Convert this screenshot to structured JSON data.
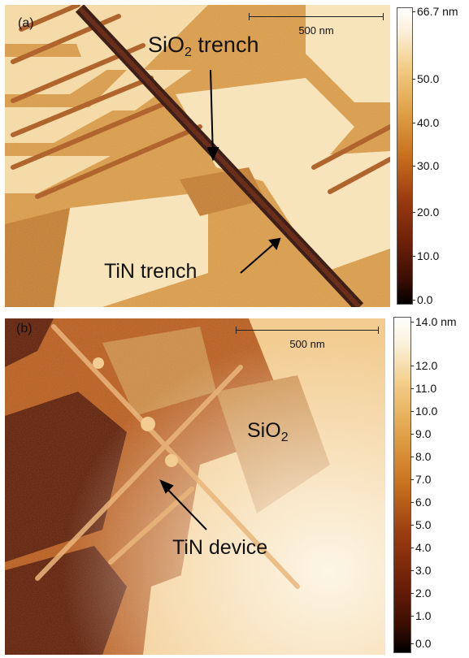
{
  "panel_a": {
    "letter": "(a)",
    "scale_bar": "500 nm",
    "label_sio2_prefix": "SiO",
    "label_sio2_sub": "2",
    "label_sio2_suffix": " trench",
    "label_tin": "TiN trench",
    "colorbar_ticks": [
      "66.7 nm",
      "50.0",
      "40.0",
      "30.0",
      "20.0",
      "10.0",
      "0.0"
    ]
  },
  "panel_b": {
    "letter": "(b)",
    "scale_bar": "500 nm",
    "label_sio2_prefix": "SiO",
    "label_sio2_sub": "2",
    "label_tin": "TiN device",
    "colorbar_ticks": [
      "14.0 nm",
      "12.0",
      "11.0",
      "10.0",
      "9.0",
      "8.0",
      "7.0",
      "6.0",
      "5.0",
      "4.0",
      "3.0",
      "2.0",
      "1.0",
      "0.0"
    ]
  },
  "colors": {
    "dark": "#1a0602",
    "brown": "#7a2c0c",
    "mid": "#c97a2e",
    "light": "#f3d8a2",
    "highlight": "#fdf6e6"
  }
}
